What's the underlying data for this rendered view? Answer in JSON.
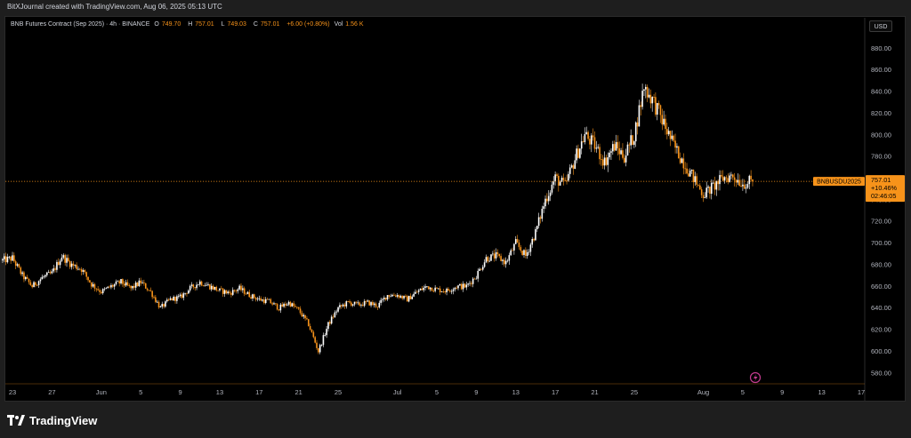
{
  "header": {
    "attribution": "BitXJournal created with TradingView.com, Aug 06, 2025 05:13 UTC"
  },
  "legend": {
    "symbol": "BNB Futures Contract (Sep 2025) · 4h · BINANCE",
    "o_key": "O",
    "o_val": "749.70",
    "h_key": "H",
    "h_val": "757.01",
    "l_key": "L",
    "l_val": "749.03",
    "c_key": "C",
    "c_val": "757.01",
    "change": "+6.00 (+0.80%)",
    "vol_key": "Vol",
    "vol_val": "1.56 K"
  },
  "currency_button": "USD",
  "price_tag": {
    "ticker": "BNBUSDU2025",
    "price": "757.01",
    "pct": "+10.46%",
    "countdown": "02:46:05"
  },
  "footer": {
    "brand": "TradingView"
  },
  "colors": {
    "up": "#ffffff",
    "down": "#f7931a",
    "grid": "#3a2a10",
    "line": "#f7931a"
  },
  "chart_data": {
    "type": "candlestick",
    "ylim": [
      570,
      895
    ],
    "y_ticks": [
      580,
      600,
      620,
      640,
      660,
      680,
      700,
      720,
      740,
      760,
      780,
      800,
      820,
      840,
      860,
      880
    ],
    "x_ticks": [
      {
        "label": "23",
        "day": 0
      },
      {
        "label": "27",
        "day": 4
      },
      {
        "label": "Jun",
        "day": 9
      },
      {
        "label": "5",
        "day": 13
      },
      {
        "label": "9",
        "day": 17
      },
      {
        "label": "13",
        "day": 21
      },
      {
        "label": "17",
        "day": 25
      },
      {
        "label": "21",
        "day": 29
      },
      {
        "label": "25",
        "day": 33
      },
      {
        "label": "Jul",
        "day": 39
      },
      {
        "label": "5",
        "day": 43
      },
      {
        "label": "9",
        "day": 47
      },
      {
        "label": "13",
        "day": 51
      },
      {
        "label": "17",
        "day": 55
      },
      {
        "label": "21",
        "day": 59
      },
      {
        "label": "25",
        "day": 63
      },
      {
        "label": "Aug",
        "day": 70
      },
      {
        "label": "5",
        "day": 74
      },
      {
        "label": "9",
        "day": 78
      },
      {
        "label": "13",
        "day": 82
      },
      {
        "label": "17",
        "day": 86
      }
    ],
    "last_price": 757.01,
    "close_path": [
      [
        -1,
        684
      ],
      [
        0,
        686
      ],
      [
        1,
        670
      ],
      [
        2,
        660
      ],
      [
        3,
        668
      ],
      [
        4,
        672
      ],
      [
        5,
        688
      ],
      [
        6,
        680
      ],
      [
        7,
        676
      ],
      [
        8,
        662
      ],
      [
        9,
        655
      ],
      [
        10,
        660
      ],
      [
        11,
        664
      ],
      [
        12,
        658
      ],
      [
        13,
        664
      ],
      [
        14,
        655
      ],
      [
        15,
        640
      ],
      [
        16,
        648
      ],
      [
        17,
        650
      ],
      [
        18,
        658
      ],
      [
        19,
        664
      ],
      [
        20,
        660
      ],
      [
        21,
        656
      ],
      [
        22,
        654
      ],
      [
        23,
        658
      ],
      [
        24,
        652
      ],
      [
        25,
        648
      ],
      [
        26,
        646
      ],
      [
        27,
        640
      ],
      [
        28,
        645
      ],
      [
        29,
        638
      ],
      [
        30,
        625
      ],
      [
        31,
        600
      ],
      [
        32,
        625
      ],
      [
        33,
        640
      ],
      [
        34,
        645
      ],
      [
        35,
        643
      ],
      [
        36,
        645
      ],
      [
        37,
        642
      ],
      [
        38,
        652
      ],
      [
        39,
        652
      ],
      [
        40,
        648
      ],
      [
        41,
        655
      ],
      [
        42,
        660
      ],
      [
        43,
        657
      ],
      [
        44,
        656
      ],
      [
        45,
        660
      ],
      [
        46,
        660
      ],
      [
        47,
        670
      ],
      [
        48,
        686
      ],
      [
        49,
        688
      ],
      [
        50,
        682
      ],
      [
        51,
        700
      ],
      [
        52,
        688
      ],
      [
        53,
        710
      ],
      [
        54,
        740
      ],
      [
        55,
        760
      ],
      [
        56,
        753
      ],
      [
        57,
        778
      ],
      [
        58,
        800
      ],
      [
        59,
        790
      ],
      [
        60,
        775
      ],
      [
        61,
        790
      ],
      [
        62,
        780
      ],
      [
        63,
        800
      ],
      [
        64,
        845
      ],
      [
        65,
        830
      ],
      [
        66,
        810
      ],
      [
        67,
        790
      ],
      [
        68,
        775
      ],
      [
        69,
        760
      ],
      [
        70,
        745
      ],
      [
        71,
        752
      ],
      [
        72,
        760
      ],
      [
        73,
        762
      ],
      [
        74,
        755
      ],
      [
        75,
        757
      ]
    ]
  }
}
